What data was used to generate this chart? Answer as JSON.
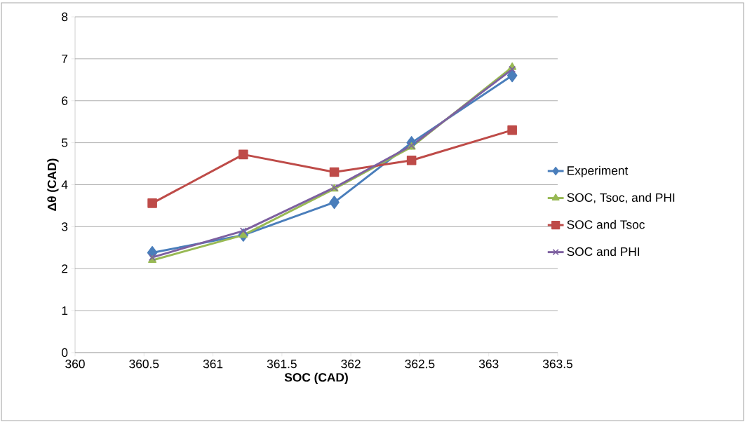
{
  "chart_data": {
    "type": "line",
    "xlabel": "SOC (CAD)",
    "ylabel": "Δθ  (CAD)",
    "xlim": [
      360,
      363.5
    ],
    "xticks": [
      360,
      360.5,
      361,
      361.5,
      362,
      362.5,
      363,
      363.5
    ],
    "ylim": [
      0,
      8
    ],
    "yticks": [
      0,
      1,
      2,
      3,
      4,
      5,
      6,
      7,
      8
    ],
    "grid": "y",
    "legend": "right",
    "line_style": "solid",
    "series": [
      {
        "name": "Experiment",
        "color": "#4a7ebb",
        "marker": "diamond",
        "x": [
          360.56,
          361.22,
          361.88,
          362.44,
          363.17
        ],
        "values": [
          2.38,
          2.8,
          3.58,
          5.0,
          6.6
        ]
      },
      {
        "name": "SOC, Tsoc, and PHI",
        "color": "#98b954",
        "marker": "triangle",
        "x": [
          360.56,
          361.22,
          361.88,
          362.44,
          363.17
        ],
        "values": [
          2.2,
          2.8,
          3.9,
          4.9,
          6.8
        ]
      },
      {
        "name": "SOC and Tsoc",
        "color": "#be4b48",
        "marker": "square",
        "x": [
          360.56,
          361.22,
          361.88,
          362.44,
          363.17
        ],
        "values": [
          3.56,
          4.72,
          4.3,
          4.58,
          5.3
        ]
      },
      {
        "name": "SOC and PHI",
        "color": "#7d60a0",
        "marker": "cross",
        "x": [
          360.56,
          361.22,
          361.88,
          362.44,
          363.17
        ],
        "values": [
          2.27,
          2.9,
          3.93,
          4.93,
          6.75
        ]
      }
    ]
  }
}
